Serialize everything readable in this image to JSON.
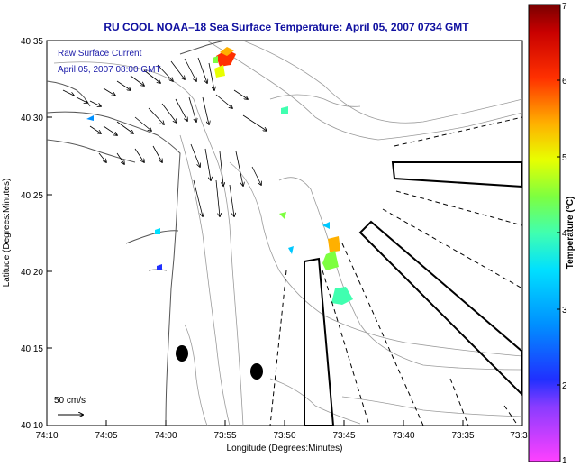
{
  "title": "RU COOL  NOAA–18  Sea Surface Temperature:  April 05, 2007 0734 GMT",
  "legend": {
    "line1": "Raw Surface Current",
    "line2": "April 05, 2007 08:00 GMT"
  },
  "scale_label": "50 cm/s",
  "x_axis": {
    "label": "Longitude (Degrees:Minutes)",
    "ticks": [
      "74:10",
      "74:05",
      "74:00",
      "73:55",
      "73:50",
      "73:45",
      "73:40",
      "73:35",
      "73:3"
    ]
  },
  "y_axis": {
    "label": "Latitude (Degrees:Minutes)",
    "ticks": [
      "40:35",
      "40:30",
      "40:25",
      "40:20",
      "40:15",
      "40:10"
    ]
  },
  "colorbar": {
    "label": "Temperature (°C)",
    "ticks": [
      "7",
      "6",
      "5",
      "4",
      "3",
      "2",
      "1"
    ],
    "min": 1,
    "max": 7
  },
  "colors": {
    "title": "#1010a0",
    "contour": "#9a9a9a",
    "coast": "#555555"
  }
}
